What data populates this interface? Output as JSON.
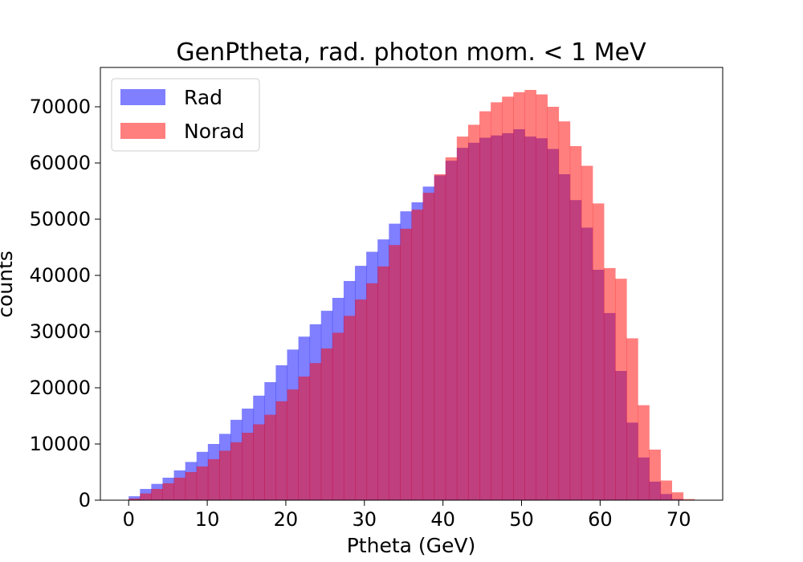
{
  "chart_data": {
    "type": "bar",
    "title": "GenPtheta, rad. photon mom. < 1 MeV",
    "xlabel": "Ptheta (GeV)",
    "ylabel": "counts",
    "xlim": [
      -3.6,
      75.6
    ],
    "ylim": [
      0,
      77000
    ],
    "x_ticks": [
      0,
      10,
      20,
      30,
      40,
      50,
      60,
      70
    ],
    "y_ticks": [
      0,
      10000,
      20000,
      30000,
      40000,
      50000,
      60000,
      70000
    ],
    "grid": false,
    "legend_position": "top-left",
    "bin_start": 0,
    "bin_width": 1.44,
    "series": [
      {
        "name": "Rad",
        "color": "#0000ff",
        "values": [
          700,
          2000,
          2900,
          4000,
          5300,
          6800,
          8600,
          10000,
          11800,
          14300,
          16300,
          18600,
          21000,
          24000,
          26800,
          29100,
          31300,
          33700,
          36000,
          39000,
          41700,
          44200,
          46400,
          49200,
          51400,
          53000,
          55800,
          57800,
          60400,
          62700,
          63600,
          64500,
          64900,
          65300,
          66000,
          64700,
          64400,
          62500,
          58000,
          53400,
          48500,
          41000,
          33300,
          23000,
          13800,
          7600,
          3300,
          1100,
          200,
          0
        ]
      },
      {
        "name": "Norad",
        "color": "#ff0000",
        "values": [
          300,
          1200,
          2000,
          3000,
          4000,
          5000,
          6000,
          7300,
          8800,
          10300,
          12000,
          13500,
          15200,
          17600,
          19700,
          22000,
          24400,
          27000,
          29800,
          32800,
          35700,
          38600,
          41600,
          45400,
          48300,
          51700,
          54700,
          58000,
          61000,
          64700,
          66800,
          69200,
          70800,
          71800,
          72600,
          73000,
          72200,
          70000,
          67400,
          63000,
          59500,
          52800,
          41300,
          39400,
          28800,
          16900,
          9000,
          3500,
          1400,
          200
        ]
      }
    ]
  }
}
